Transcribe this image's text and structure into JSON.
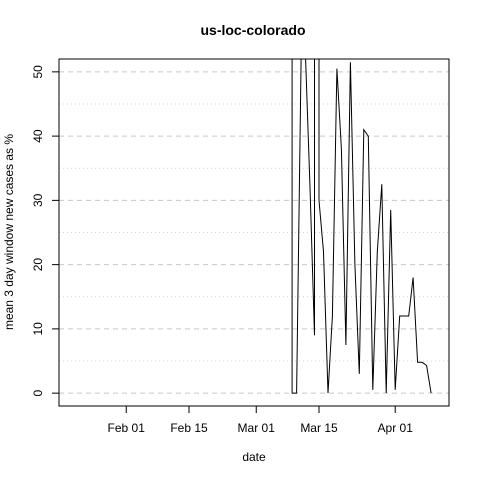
{
  "chart_data": {
    "type": "line",
    "title": "us-loc-colorado",
    "xlabel": "date",
    "ylabel": "mean  3  day window new cases as %",
    "x_ticks": [
      {
        "label": "Feb 01",
        "date": "2020-02-01"
      },
      {
        "label": "Feb 15",
        "date": "2020-02-15"
      },
      {
        "label": "Mar 01",
        "date": "2020-03-01"
      },
      {
        "label": "Mar 15",
        "date": "2020-03-15"
      },
      {
        "label": "Apr 01",
        "date": "2020-04-01"
      }
    ],
    "y_ticks": [
      0,
      10,
      20,
      30,
      40,
      50
    ],
    "xlim": [
      "2020-01-17",
      "2020-04-13"
    ],
    "ylim": [
      -2,
      52
    ],
    "grid": true,
    "series": [
      {
        "color": "#000000",
        "points": [
          {
            "x": "2020-03-09",
            "y": 52
          },
          {
            "x": "2020-03-09",
            "y": 0
          },
          {
            "x": "2020-03-10",
            "y": 0
          },
          {
            "x": "2020-03-11",
            "y": 52
          },
          {
            "x": "2020-03-12",
            "y": 52
          },
          {
            "x": "2020-03-13",
            "y": 32
          },
          {
            "x": "2020-03-14",
            "y": 9
          },
          {
            "x": "2020-03-14",
            "y": 52
          },
          {
            "x": "2020-03-15",
            "y": 52
          },
          {
            "x": "2020-03-15",
            "y": 30
          },
          {
            "x": "2020-03-16",
            "y": 22
          },
          {
            "x": "2020-03-17",
            "y": 0
          },
          {
            "x": "2020-03-18",
            "y": 12
          },
          {
            "x": "2020-03-19",
            "y": 50.5
          },
          {
            "x": "2020-03-20",
            "y": 38
          },
          {
            "x": "2020-03-21",
            "y": 7.5
          },
          {
            "x": "2020-03-22",
            "y": 51.5
          },
          {
            "x": "2020-03-23",
            "y": 20
          },
          {
            "x": "2020-03-24",
            "y": 3
          },
          {
            "x": "2020-03-25",
            "y": 41
          },
          {
            "x": "2020-03-26",
            "y": 40
          },
          {
            "x": "2020-03-27",
            "y": 0.5
          },
          {
            "x": "2020-03-28",
            "y": 22
          },
          {
            "x": "2020-03-29",
            "y": 32.5
          },
          {
            "x": "2020-03-30",
            "y": 0
          },
          {
            "x": "2020-03-31",
            "y": 28.5
          },
          {
            "x": "2020-04-01",
            "y": 0.5
          },
          {
            "x": "2020-04-02",
            "y": 12
          },
          {
            "x": "2020-04-03",
            "y": 12
          },
          {
            "x": "2020-04-04",
            "y": 12
          },
          {
            "x": "2020-04-05",
            "y": 18
          },
          {
            "x": "2020-04-06",
            "y": 4.8
          },
          {
            "x": "2020-04-07",
            "y": 4.8
          },
          {
            "x": "2020-04-08",
            "y": 4.3
          },
          {
            "x": "2020-04-09",
            "y": 0
          }
        ]
      }
    ]
  }
}
